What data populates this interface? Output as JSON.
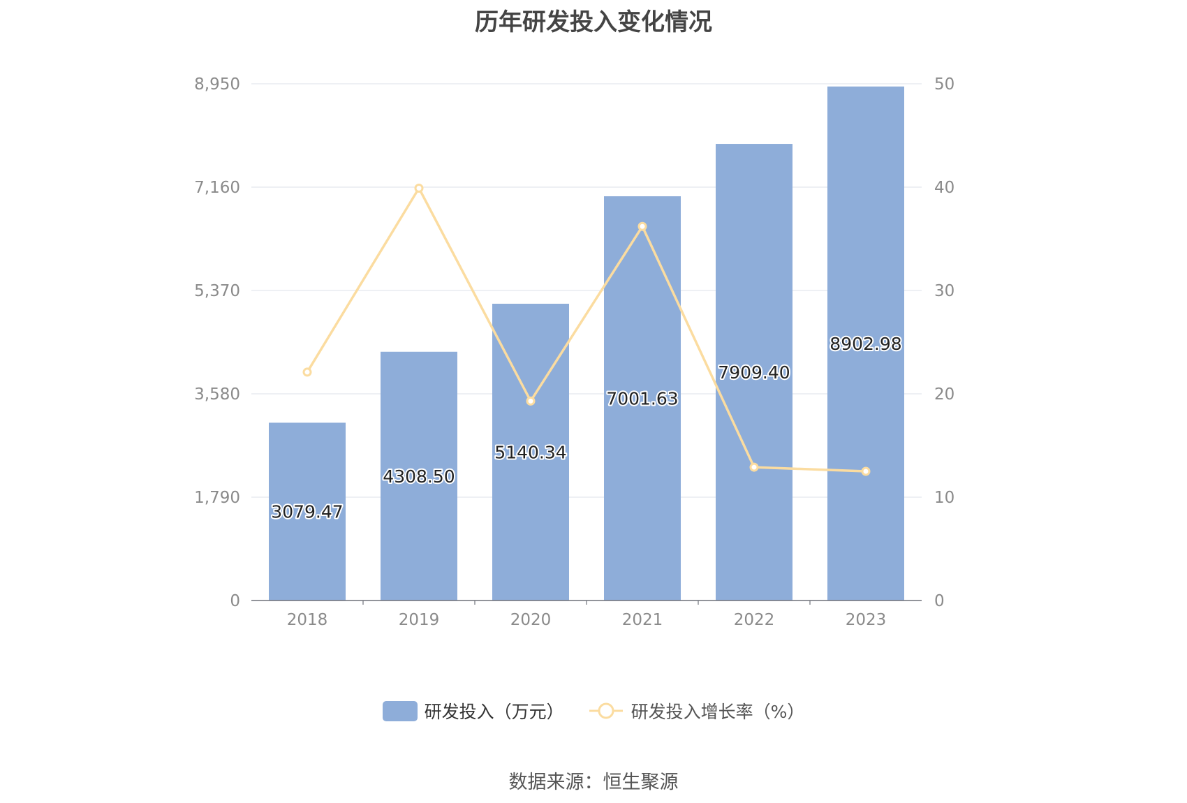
{
  "title": "历年研发投入变化情况",
  "source_text": "数据来源：恒生聚源",
  "colors": {
    "bar": "#8eadd9",
    "line": "#fbdca0",
    "grid": "#e3e6ee",
    "axis_text": "#8a8a8a"
  },
  "legend": {
    "bar_label": "研发投入（万元）",
    "line_label": "研发投入增长率（%）"
  },
  "chart_data": {
    "type": "bar",
    "title": "历年研发投入变化情况",
    "categories": [
      "2018",
      "2019",
      "2020",
      "2021",
      "2022",
      "2023"
    ],
    "series": [
      {
        "name": "研发投入（万元）",
        "type": "bar",
        "axis": "left",
        "values": [
          3079.47,
          4308.5,
          5140.34,
          7001.63,
          7909.4,
          8902.98
        ],
        "labels": [
          "3079.47",
          "4308.50",
          "5140.34",
          "7001.63",
          "7909.40",
          "8902.98"
        ]
      },
      {
        "name": "研发投入增长率（%）",
        "type": "line",
        "axis": "right",
        "values": [
          22.1,
          39.9,
          19.3,
          36.2,
          12.9,
          12.5
        ]
      }
    ],
    "y_left": {
      "ticks": [
        "0",
        "1,790",
        "3,580",
        "5,370",
        "7,160",
        "8,950"
      ],
      "min": 0,
      "max": 8950
    },
    "y_right": {
      "ticks": [
        "0",
        "10",
        "20",
        "30",
        "40",
        "50"
      ],
      "min": 0,
      "max": 50
    },
    "grid": true,
    "legend_position": "bottom"
  }
}
